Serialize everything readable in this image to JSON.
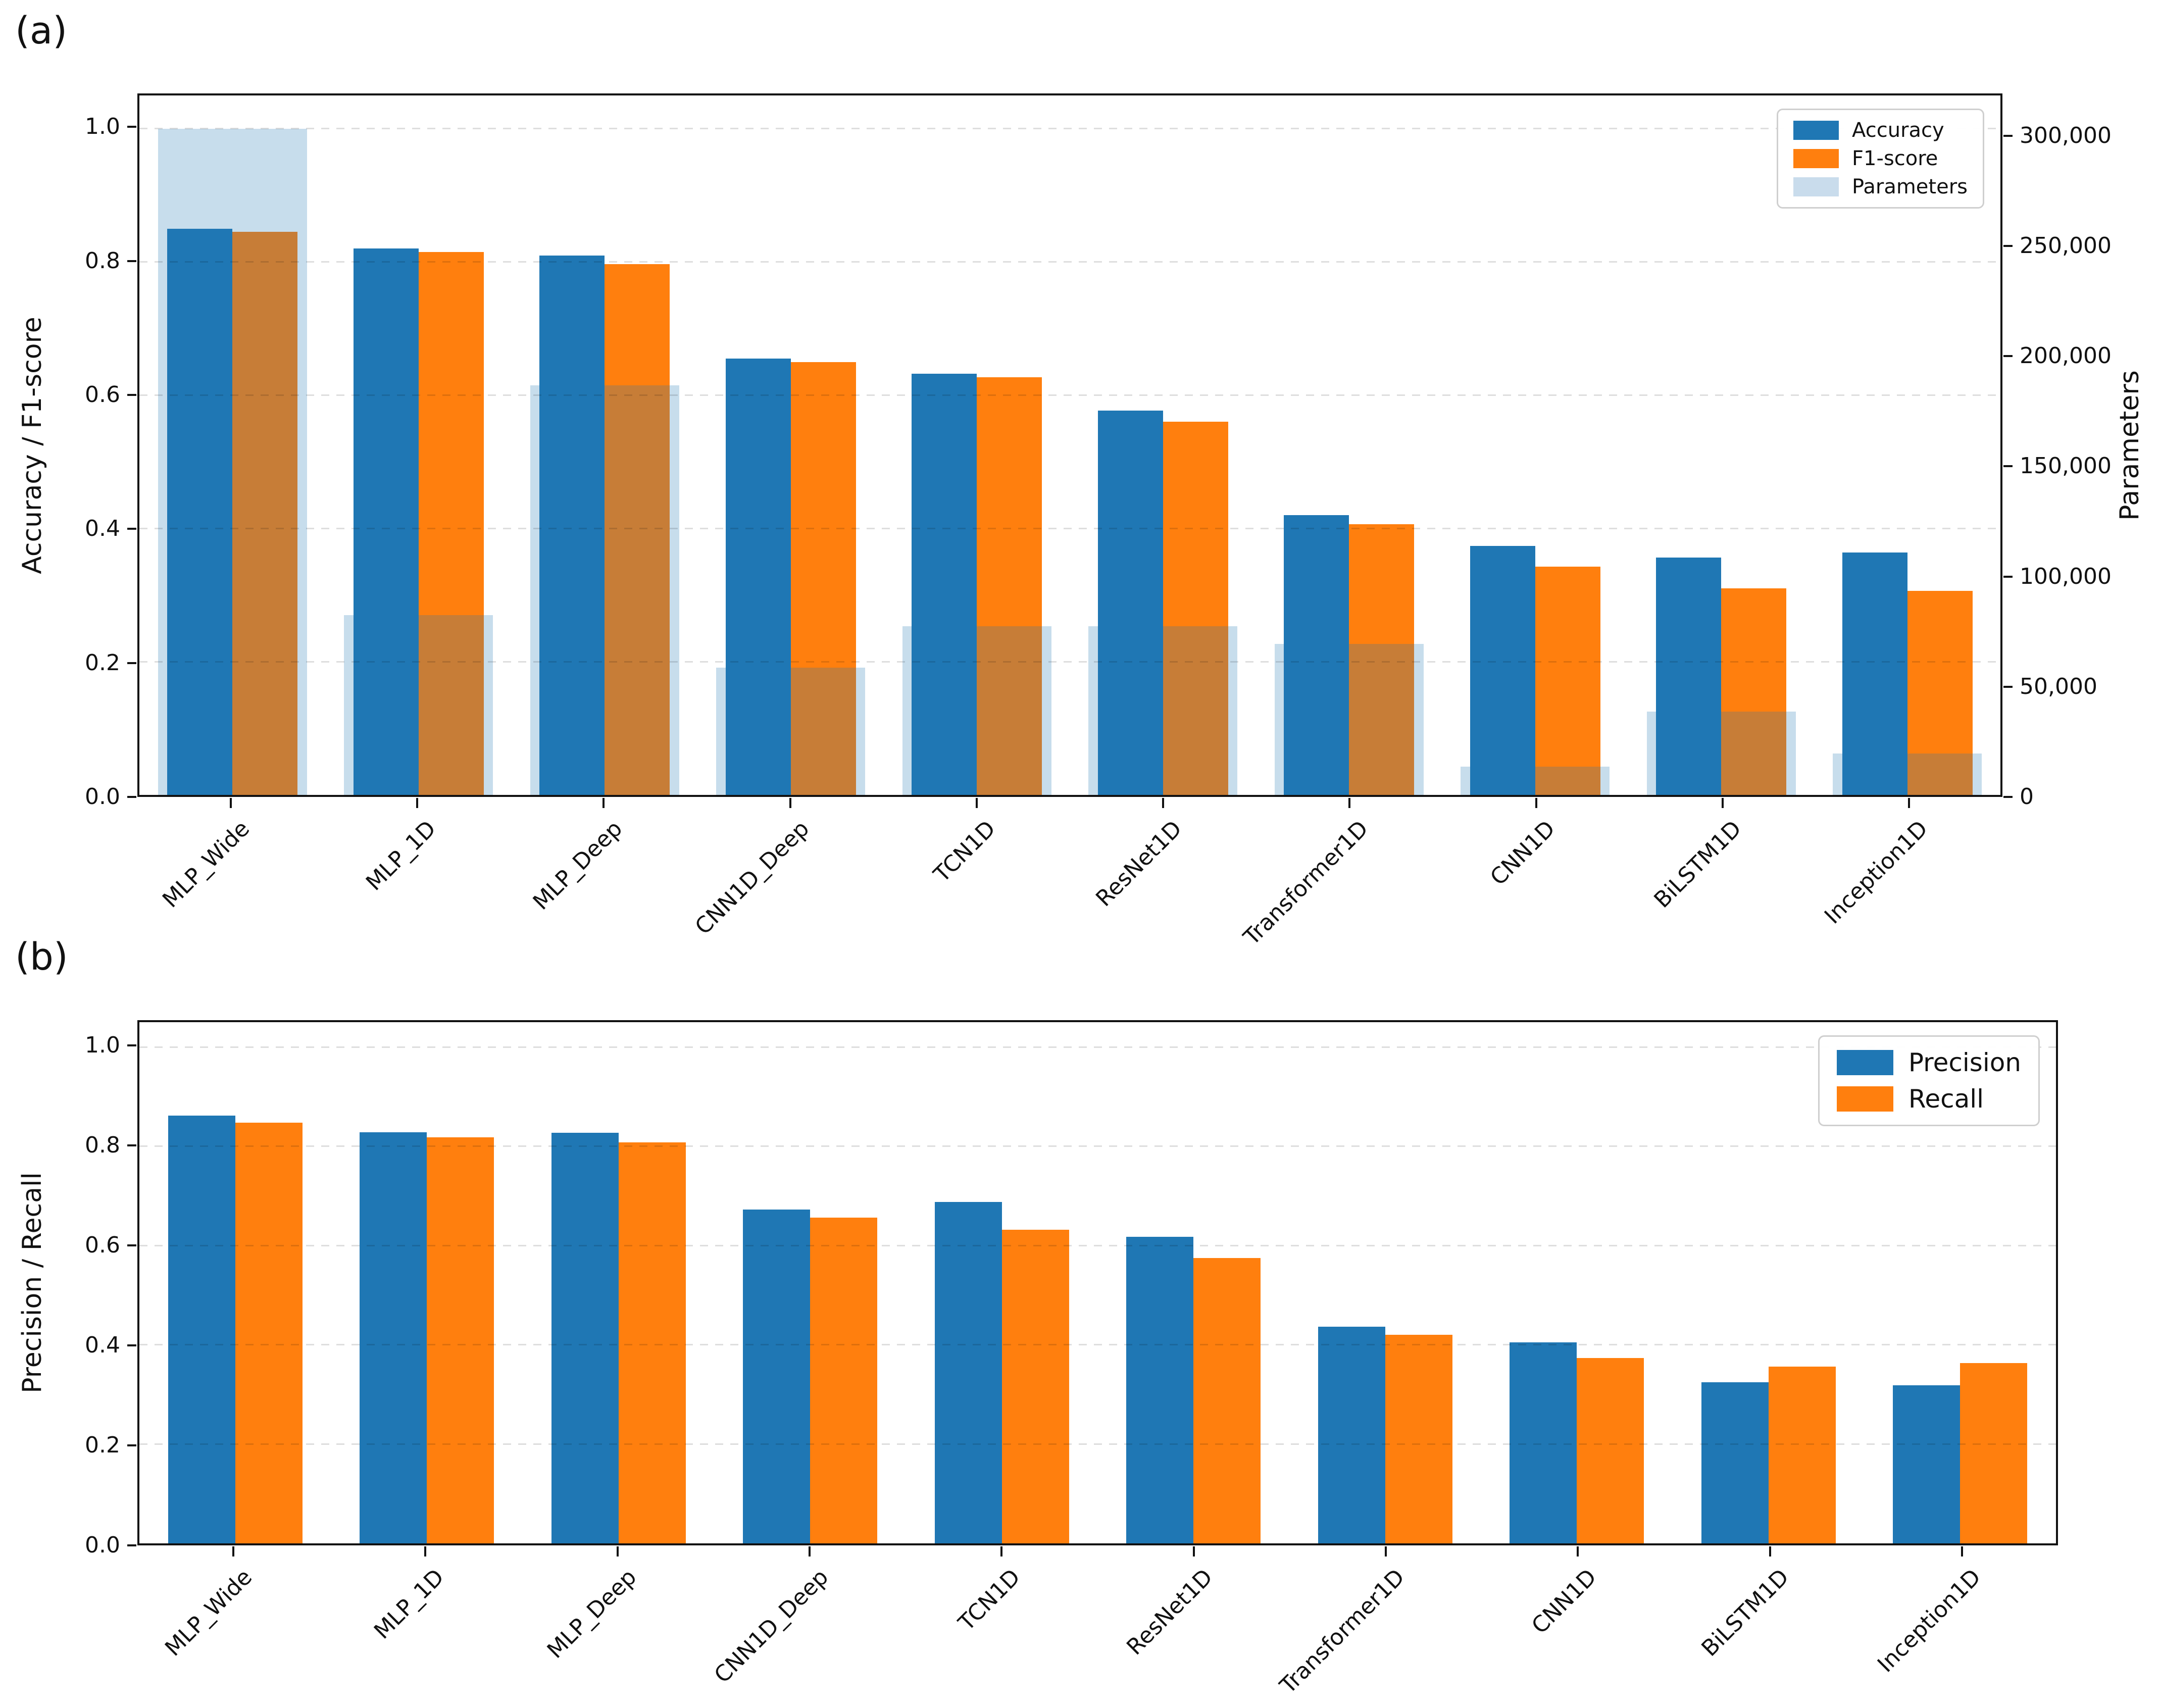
{
  "figure": {
    "background": "#ffffff",
    "panel_a_label": "(a)",
    "panel_b_label": "(b)"
  },
  "colors": {
    "blue": "#1f77b4",
    "orange": "#ff7f0e",
    "parameters_overlay": "rgba(31,119,180,0.25)",
    "parameters_legend": "#c9dcec",
    "gridline": "rgba(0,0,0,0.13)",
    "spine": "#111111"
  },
  "chart_data": [
    {
      "id": "a",
      "type": "bar",
      "panel_label": "(a)",
      "ylabel": "Accuracy / F1-score",
      "ylabel_right": "Parameters",
      "ylim": [
        0,
        1.05
      ],
      "ylim_right": [
        0,
        319200
      ],
      "grid": "dashed horizontal at 0.2 steps",
      "legend_position": "upper right",
      "categories": [
        "MLP_Wide",
        "MLP_1D",
        "MLP_Deep",
        "CNN1D_Deep",
        "TCN1D",
        "ResNet1D",
        "Transformer1D",
        "CNN1D",
        "BiLSTM1D",
        "Inception1D"
      ],
      "series": [
        {
          "name": "Accuracy",
          "axis": "left",
          "color": "#1f77b4",
          "legend_color": "#1f77b4",
          "values": [
            0.85,
            0.82,
            0.81,
            0.655,
            0.632,
            0.577,
            0.42,
            0.374,
            0.356,
            0.364
          ]
        },
        {
          "name": "F1-score",
          "axis": "left",
          "color": "#ff7f0e",
          "legend_color": "#ff7f0e",
          "values": [
            0.845,
            0.815,
            0.797,
            0.65,
            0.627,
            0.56,
            0.406,
            0.343,
            0.31,
            0.306
          ]
        },
        {
          "name": "Parameters",
          "axis": "right",
          "color": "rgba(31,119,180,0.25)",
          "legend_color": "#c9dcec",
          "values": [
            304000,
            82000,
            187000,
            58000,
            77000,
            77000,
            69000,
            13000,
            38000,
            19000
          ]
        }
      ],
      "yticks": [
        {
          "v": 0.0,
          "label": "0.0"
        },
        {
          "v": 0.2,
          "label": "0.2"
        },
        {
          "v": 0.4,
          "label": "0.4"
        },
        {
          "v": 0.6,
          "label": "0.6"
        },
        {
          "v": 0.8,
          "label": "0.8"
        },
        {
          "v": 1.0,
          "label": "1.0"
        }
      ],
      "yticks_right": [
        {
          "v": 0,
          "label": "0"
        },
        {
          "v": 50000,
          "label": "50,000"
        },
        {
          "v": 100000,
          "label": "100,000"
        },
        {
          "v": 150000,
          "label": "150,000"
        },
        {
          "v": 200000,
          "label": "200,000"
        },
        {
          "v": 250000,
          "label": "250,000"
        },
        {
          "v": 300000,
          "label": "300,000"
        }
      ]
    },
    {
      "id": "b",
      "type": "bar",
      "panel_label": "(b)",
      "ylabel": "Precision / Recall",
      "ylabel_right": null,
      "ylim": [
        0,
        1.05
      ],
      "grid": "dashed horizontal at 0.2 steps",
      "legend_position": "upper right",
      "categories": [
        "MLP_Wide",
        "MLP_1D",
        "MLP_Deep",
        "CNN1D_Deep",
        "TCN1D",
        "ResNet1D",
        "Transformer1D",
        "CNN1D",
        "BiLSTM1D",
        "Inception1D"
      ],
      "series": [
        {
          "name": "Precision",
          "axis": "left",
          "color": "#1f77b4",
          "legend_color": "#1f77b4",
          "values": [
            0.862,
            0.828,
            0.827,
            0.673,
            0.688,
            0.618,
            0.437,
            0.405,
            0.325,
            0.318
          ]
        },
        {
          "name": "Recall",
          "axis": "left",
          "color": "#ff7f0e",
          "legend_color": "#ff7f0e",
          "values": [
            0.848,
            0.818,
            0.808,
            0.656,
            0.632,
            0.575,
            0.42,
            0.373,
            0.356,
            0.363
          ]
        }
      ],
      "yticks": [
        {
          "v": 0.0,
          "label": "0.0"
        },
        {
          "v": 0.2,
          "label": "0.2"
        },
        {
          "v": 0.4,
          "label": "0.4"
        },
        {
          "v": 0.6,
          "label": "0.6"
        },
        {
          "v": 0.8,
          "label": "0.8"
        },
        {
          "v": 1.0,
          "label": "1.0"
        }
      ]
    }
  ]
}
